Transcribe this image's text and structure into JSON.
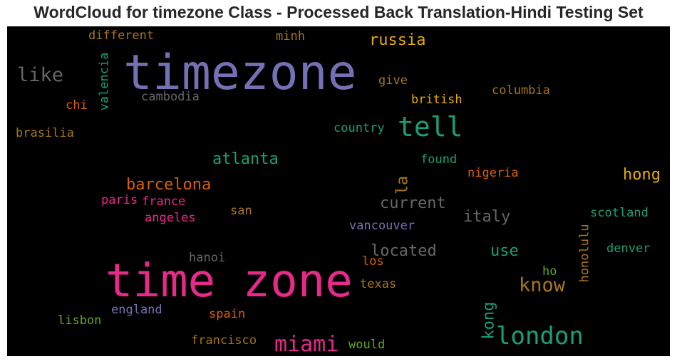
{
  "title": "WordCloud for timezone Class - Processed Back Translation-Hindi Testing Set",
  "colors": {
    "purple": "#7570b3",
    "teal": "#1b9e77",
    "pink": "#e7298a",
    "orange": "#d95f02",
    "gold": "#e6ab02",
    "brown": "#a6761d",
    "green": "#66a61e",
    "gray": "#666666"
  },
  "words": {
    "timezone": "timezone",
    "time_zone": "time zone",
    "tell": "tell",
    "london": "london",
    "miami": "miami",
    "know": "know",
    "like": "like",
    "russia": "russia",
    "atlanta": "atlanta",
    "barcelona": "barcelona",
    "current": "current",
    "located": "located",
    "italy": "italy",
    "hong": "hong",
    "use": "use",
    "kong": "kong",
    "la": "la",
    "different": "different",
    "minh": "minh",
    "valencia": "valencia",
    "cambodia": "cambodia",
    "give": "give",
    "british": "british",
    "columbia": "columbia",
    "chi": "chi",
    "brasilia": "brasilia",
    "country": "country",
    "found": "found",
    "nigeria": "nigeria",
    "paris": "paris",
    "france": "france",
    "angeles": "angeles",
    "san": "san",
    "vancouver": "vancouver",
    "scotland": "scotland",
    "honolulu": "honolulu",
    "denver": "denver",
    "hanoi": "hanoi",
    "los": "los",
    "ho": "ho",
    "texas": "texas",
    "england": "england",
    "spain": "spain",
    "lisbon": "lisbon",
    "francisco": "francisco",
    "would": "would"
  }
}
